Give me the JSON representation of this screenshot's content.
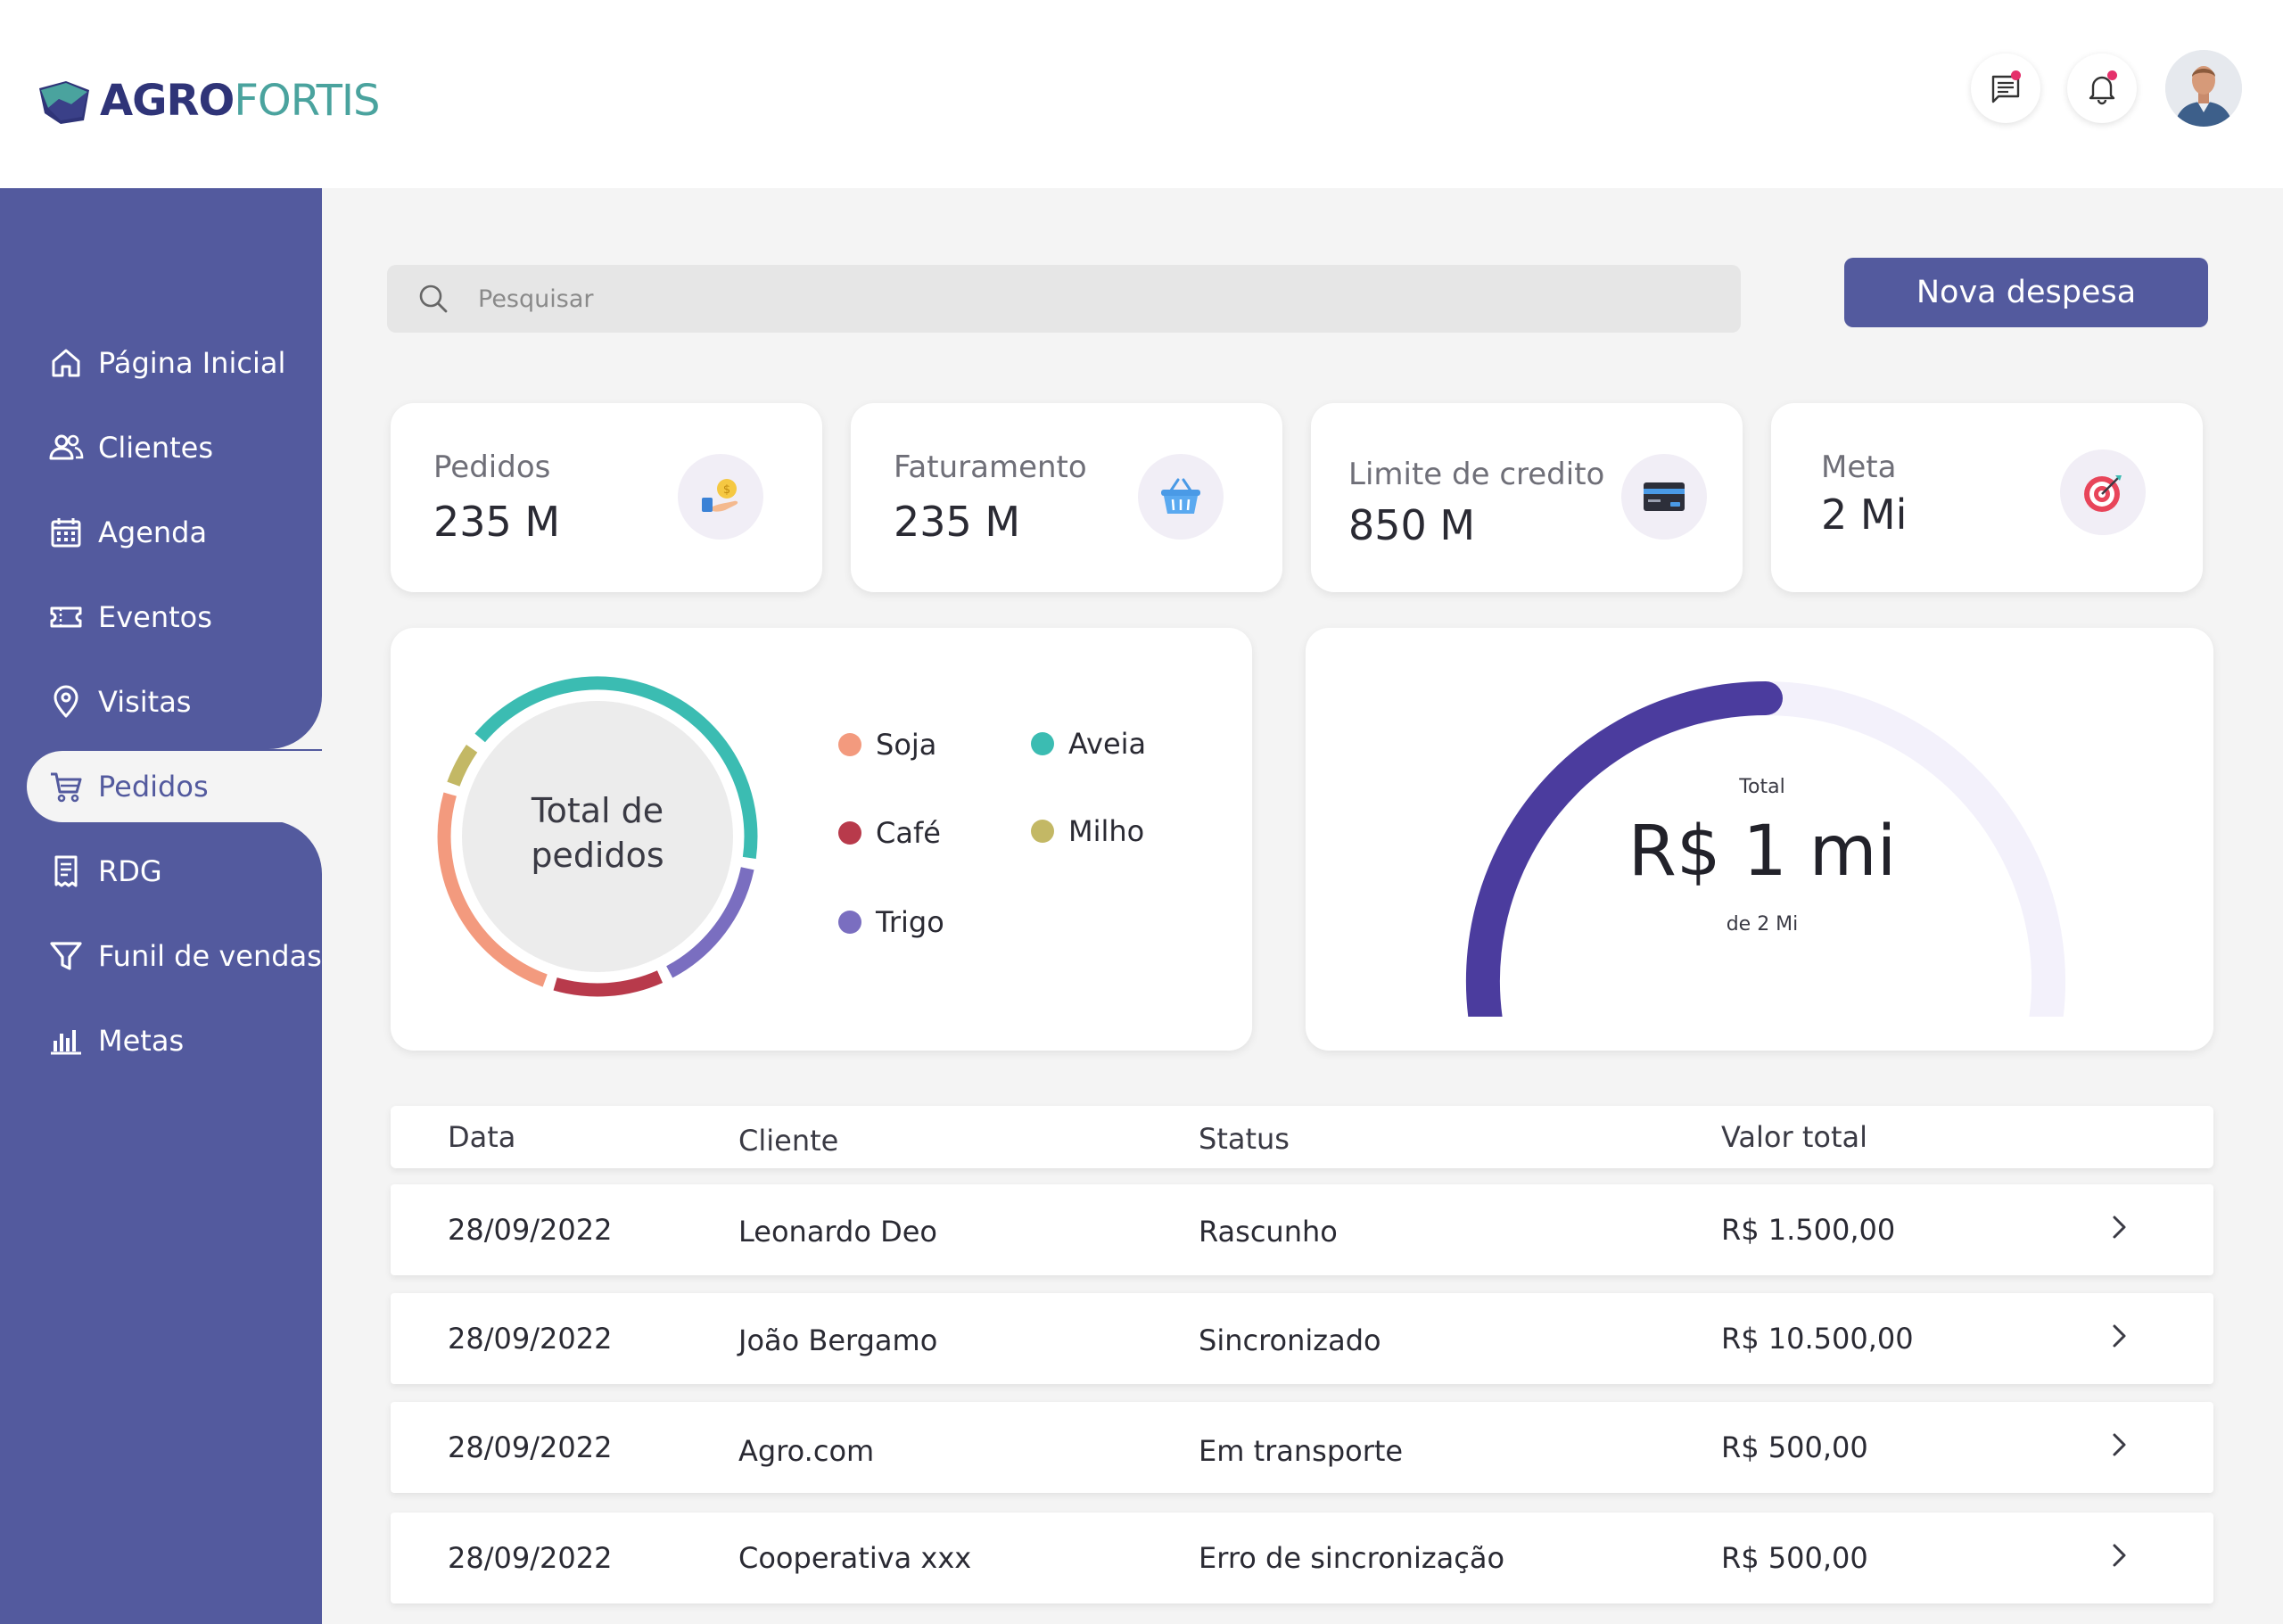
{
  "brand": {
    "agro": "AGRO",
    "fortis": "FORTIS"
  },
  "header": {
    "notification_dot_color": "#e5306b"
  },
  "sidebar": {
    "items": [
      {
        "label": "Página Inicial",
        "icon": "home-icon"
      },
      {
        "label": "Clientes",
        "icon": "users-icon"
      },
      {
        "label": "Agenda",
        "icon": "calendar-icon"
      },
      {
        "label": "Eventos",
        "icon": "ticket-icon"
      },
      {
        "label": "Visitas",
        "icon": "location-pin-icon"
      },
      {
        "label": "Pedidos",
        "icon": "cart-icon",
        "active": true
      },
      {
        "label": "RDG",
        "icon": "receipt-icon"
      },
      {
        "label": "Funil de vendas",
        "icon": "funnel-icon"
      },
      {
        "label": "Metas",
        "icon": "bar-chart-icon"
      }
    ]
  },
  "search": {
    "placeholder": "Pesquisar"
  },
  "actions": {
    "new_expense_label": "Nova despesa"
  },
  "stats": [
    {
      "label": "Pedidos",
      "value": "235 M",
      "icon": "coin-hand-icon"
    },
    {
      "label": "Faturamento",
      "value": "235 M",
      "icon": "basket-icon"
    },
    {
      "label": "Limite de credito",
      "value": "850 M",
      "icon": "credit-card-icon"
    },
    {
      "label": "Meta",
      "value": "2 Mi",
      "icon": "target-icon"
    }
  ],
  "donut": {
    "center_line1": "Total de",
    "center_line2": "pedidos",
    "legend": [
      {
        "label": "Soja",
        "color": "#f39a7e"
      },
      {
        "label": "Aveia",
        "color": "#3bbcb2"
      },
      {
        "label": "Café",
        "color": "#b83a4b"
      },
      {
        "label": "Milho",
        "color": "#c3b865"
      },
      {
        "label": "Trigo",
        "color": "#7a6ec0"
      }
    ]
  },
  "gauge": {
    "caption": "Total",
    "value": "R$ 1 mi",
    "sub": "de 2 Mi",
    "progress": 0.5,
    "fill_color": "#4b3c9e",
    "track_color": "#f3f1fb"
  },
  "table": {
    "headers": {
      "date": "Data",
      "client": "Cliente",
      "status": "Status",
      "total": "Valor total"
    },
    "rows": [
      {
        "date": "28/09/2022",
        "client": "Leonardo Deo",
        "status": "Rascunho",
        "total": "R$ 1.500,00"
      },
      {
        "date": "28/09/2022",
        "client": "João Bergamo",
        "status": "Sincronizado",
        "total": "R$ 10.500,00"
      },
      {
        "date": "28/09/2022",
        "client": "Agro.com",
        "status": "Em transporte",
        "total": "R$ 500,00"
      },
      {
        "date": "28/09/2022",
        "client": "Cooperativa xxx",
        "status": "Erro de sincronização",
        "total": "R$ 500,00"
      }
    ]
  },
  "colors": {
    "sidebar": "#535a9e",
    "accent": "#535a9e",
    "background": "#f4f4f4"
  }
}
